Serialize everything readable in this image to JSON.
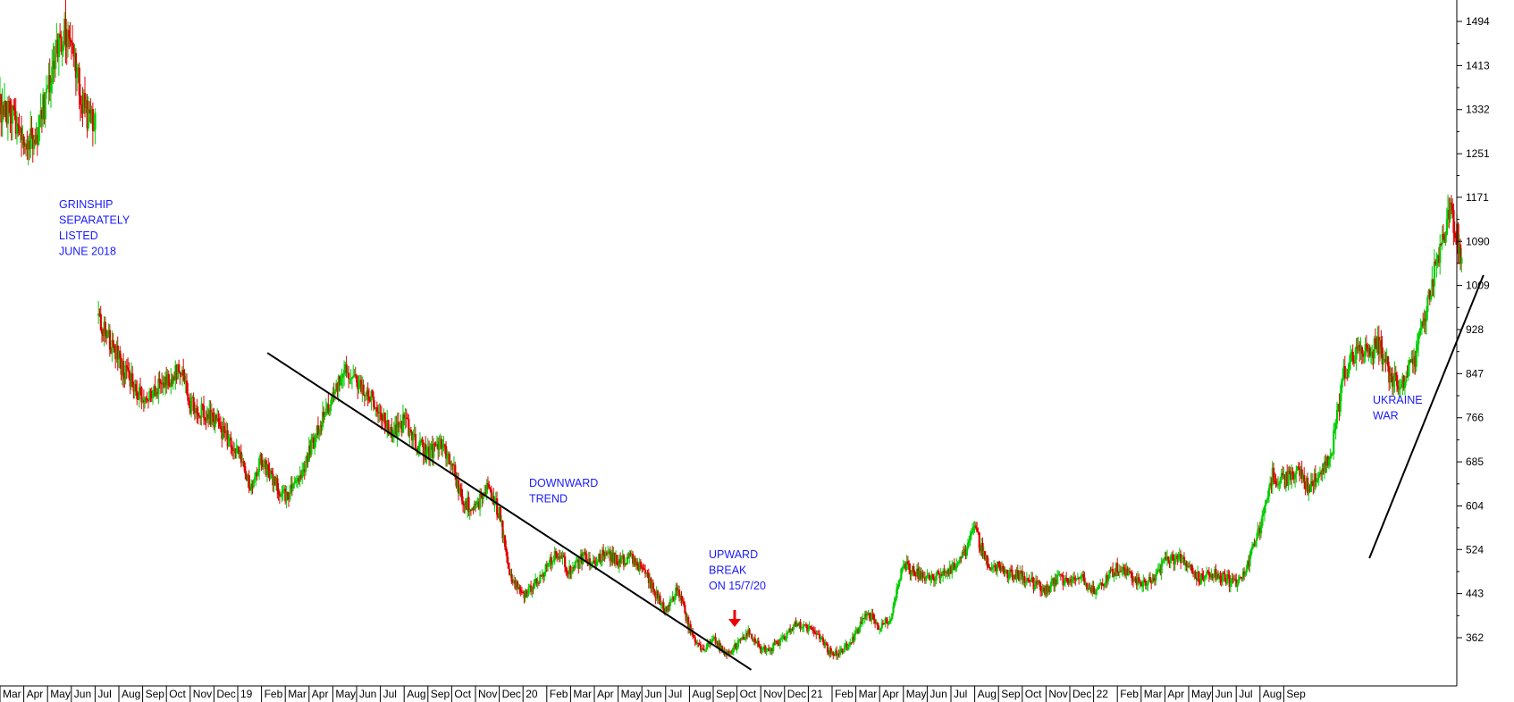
{
  "chart_data": {
    "type": "candlestick",
    "title": "",
    "xlabel": "",
    "ylabel": "",
    "ylim": [
      280,
      1530
    ],
    "y_ticks": [
      362,
      443,
      524,
      604,
      685,
      766,
      847,
      928,
      1009,
      1090,
      1171,
      1251,
      1332,
      1413,
      1494
    ],
    "x_ticks": [
      "Mar",
      "Apr",
      "May",
      "Jun",
      "Jul",
      "Aug",
      "Sep",
      "Oct",
      "Nov",
      "Dec",
      "19",
      "Feb",
      "Mar",
      "Apr",
      "May",
      "Jun",
      "Jul",
      "Aug",
      "Sep",
      "Oct",
      "Nov",
      "Dec",
      "20",
      "Feb",
      "Mar",
      "Apr",
      "May",
      "Jun",
      "Jul",
      "Aug",
      "Sep",
      "Oct",
      "Nov",
      "Dec",
      "21",
      "Feb",
      "Mar",
      "Apr",
      "May",
      "Jun",
      "Jul",
      "Aug",
      "Sep",
      "Oct",
      "Nov",
      "Dec",
      "22",
      "Feb",
      "Mar",
      "Apr",
      "May",
      "Jun",
      "Jul",
      "Aug",
      "Sep"
    ],
    "series": [
      {
        "points": [
          [
            0,
            1340
          ],
          [
            1,
            1290
          ],
          [
            1.4,
            1270
          ],
          [
            2,
            1360
          ],
          [
            2.4,
            1450
          ],
          [
            2.8,
            1480
          ],
          [
            3.2,
            1400
          ],
          [
            3.6,
            1330
          ],
          [
            4,
            1300
          ],
          [
            4.1,
            960
          ],
          [
            5,
            870
          ],
          [
            6,
            800
          ],
          [
            7,
            830
          ],
          [
            7.5,
            860
          ],
          [
            8,
            790
          ],
          [
            9,
            760
          ],
          [
            10,
            700
          ],
          [
            10.5,
            640
          ],
          [
            11,
            690
          ],
          [
            11.5,
            650
          ],
          [
            12,
            620
          ],
          [
            12.5,
            650
          ],
          [
            13,
            700
          ],
          [
            13.5,
            760
          ],
          [
            14,
            800
          ],
          [
            14.5,
            860
          ],
          [
            15,
            830
          ],
          [
            15.5,
            810
          ],
          [
            16,
            770
          ],
          [
            16.5,
            730
          ],
          [
            17,
            760
          ],
          [
            17.5,
            720
          ],
          [
            18,
            700
          ],
          [
            18.5,
            720
          ],
          [
            19,
            680
          ],
          [
            19.5,
            610
          ],
          [
            20,
            600
          ],
          [
            20.5,
            640
          ],
          [
            21,
            590
          ],
          [
            21.5,
            470
          ],
          [
            22,
            440
          ],
          [
            22.5,
            460
          ],
          [
            23,
            490
          ],
          [
            23.5,
            520
          ],
          [
            24,
            480
          ],
          [
            24.5,
            510
          ],
          [
            25,
            500
          ],
          [
            25.5,
            520
          ],
          [
            26,
            500
          ],
          [
            26.5,
            510
          ],
          [
            27,
            490
          ],
          [
            27.5,
            450
          ],
          [
            28,
            410
          ],
          [
            28.5,
            450
          ],
          [
            29,
            380
          ],
          [
            29.5,
            340
          ],
          [
            30,
            360
          ],
          [
            30.5,
            330
          ],
          [
            31,
            350
          ],
          [
            31.5,
            370
          ],
          [
            32,
            340
          ],
          [
            32.5,
            345
          ],
          [
            33,
            360
          ],
          [
            33.5,
            390
          ],
          [
            34,
            380
          ],
          [
            34.5,
            360
          ],
          [
            35,
            330
          ],
          [
            35.5,
            340
          ],
          [
            36,
            370
          ],
          [
            36.5,
            410
          ],
          [
            37,
            380
          ],
          [
            37.5,
            400
          ],
          [
            38,
            500
          ],
          [
            38.5,
            480
          ],
          [
            39,
            470
          ],
          [
            39.5,
            480
          ],
          [
            40,
            490
          ],
          [
            40.5,
            510
          ],
          [
            41,
            560
          ],
          [
            41.5,
            500
          ],
          [
            42,
            490
          ],
          [
            42.5,
            480
          ],
          [
            43,
            475
          ],
          [
            43.5,
            460
          ],
          [
            44,
            450
          ],
          [
            44.5,
            470
          ],
          [
            45,
            460
          ],
          [
            45.5,
            470
          ],
          [
            46,
            450
          ],
          [
            46.5,
            470
          ],
          [
            47,
            490
          ],
          [
            47.5,
            480
          ],
          [
            48,
            460
          ],
          [
            48.5,
            470
          ],
          [
            49,
            500
          ],
          [
            49.5,
            510
          ],
          [
            50,
            490
          ],
          [
            50.5,
            470
          ],
          [
            51,
            480
          ],
          [
            51.5,
            470
          ],
          [
            52,
            460
          ],
          [
            52.5,
            500
          ],
          [
            53,
            560
          ],
          [
            53.5,
            660
          ],
          [
            54,
            650
          ],
          [
            54.5,
            670
          ],
          [
            55,
            640
          ],
          [
            55.5,
            660
          ],
          [
            56,
            700
          ],
          [
            56.5,
            840
          ],
          [
            57,
            890
          ],
          [
            57.5,
            880
          ],
          [
            58,
            900
          ],
          [
            58.5,
            840
          ],
          [
            59,
            830
          ],
          [
            59.5,
            870
          ],
          [
            60,
            960
          ],
          [
            60.5,
            1070
          ],
          [
            61,
            1150
          ],
          [
            61.5,
            1060
          ]
        ]
      }
    ],
    "annotations": [
      {
        "lines": [
          "GRINSHIP",
          "SEPARATELY",
          "LISTED",
          "JUNE 2018"
        ],
        "color": "#1a1aff"
      },
      {
        "lines": [
          "DOWNWARD",
          "TREND"
        ],
        "color": "#1a1aff"
      },
      {
        "lines": [
          "UPWARD",
          "BREAK",
          "ON 15/7/20"
        ],
        "color": "#1a1aff"
      },
      {
        "lines": [
          "UKRAINE",
          "WAR"
        ],
        "color": "#1a1aff"
      }
    ],
    "trendlines": [
      {
        "from": [
          11.25,
          885
        ],
        "to": [
          31.6,
          303
        ]
      },
      {
        "from": [
          57.6,
          508
        ],
        "to": [
          62.4,
          1028
        ]
      }
    ],
    "colors": {
      "up": "#00cc00",
      "down": "#dd0000",
      "annotation": "#1a1aff",
      "arrow": "#ee0000",
      "trendline": "#000000",
      "axis": "#000000",
      "background": "#ffffff"
    },
    "grid": false,
    "y_axis_side": "right"
  }
}
